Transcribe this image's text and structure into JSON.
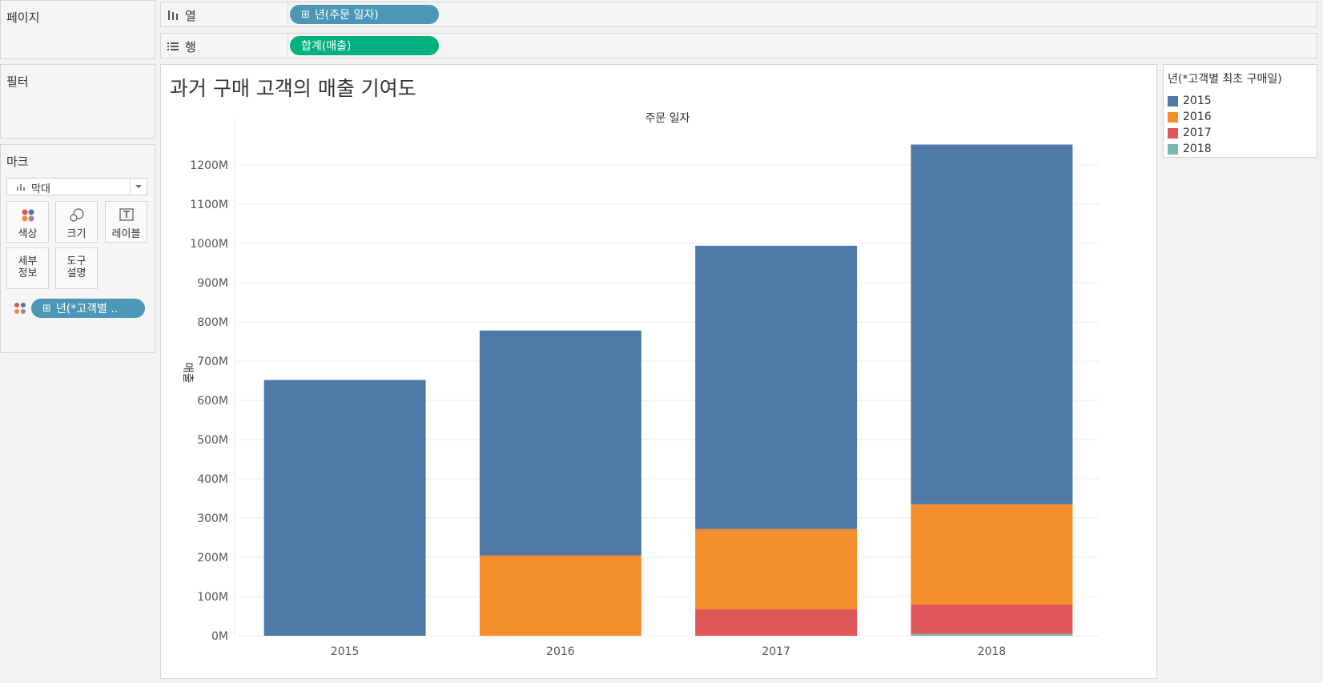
{
  "panels": {
    "pages": "페이지",
    "filters": "필터",
    "marks": "마크"
  },
  "shelves": {
    "columns": {
      "label": "열",
      "pill": "년(주문 일자)"
    },
    "rows": {
      "label": "행",
      "pill": "합계(매출)"
    }
  },
  "marks": {
    "type": "막대",
    "buttons": {
      "color": "색상",
      "size": "크기",
      "label": "레이블",
      "detail_line1": "세부",
      "detail_line2": "정보",
      "tooltip_line1": "도구",
      "tooltip_line2": "설명"
    },
    "color_pill": "년(*고객별 .."
  },
  "legend": {
    "title": "년(*고객별 최초 구매일)",
    "items": [
      {
        "label": "2015",
        "color": "#4e79a7"
      },
      {
        "label": "2016",
        "color": "#f28e2b"
      },
      {
        "label": "2017",
        "color": "#e15759"
      },
      {
        "label": "2018",
        "color": "#76b7b2"
      }
    ]
  },
  "chart_data": {
    "type": "bar",
    "stacked": true,
    "title": "과거 구매 고객의 매출 기여도",
    "xlabel": "주문 일자",
    "ylabel": "매출",
    "categories": [
      "2015",
      "2016",
      "2017",
      "2018"
    ],
    "series": [
      {
        "name": "2015",
        "color": "#4e79a7",
        "values": [
          652,
          573,
          722,
          917
        ]
      },
      {
        "name": "2016",
        "color": "#f28e2b",
        "values": [
          0,
          205,
          204,
          255
        ]
      },
      {
        "name": "2017",
        "color": "#e15759",
        "values": [
          0,
          0,
          68,
          75
        ]
      },
      {
        "name": "2018",
        "color": "#76b7b2",
        "values": [
          0,
          0,
          0,
          5
        ]
      }
    ],
    "ylim": [
      0,
      1300
    ],
    "yticks": [
      {
        "value": 0,
        "label": "0M"
      },
      {
        "value": 100,
        "label": "100M"
      },
      {
        "value": 200,
        "label": "200M"
      },
      {
        "value": 300,
        "label": "300M"
      },
      {
        "value": 400,
        "label": "400M"
      },
      {
        "value": 500,
        "label": "500M"
      },
      {
        "value": 600,
        "label": "600M"
      },
      {
        "value": 700,
        "label": "700M"
      },
      {
        "value": 800,
        "label": "800M"
      },
      {
        "value": 900,
        "label": "900M"
      },
      {
        "value": 1000,
        "label": "1000M"
      },
      {
        "value": 1100,
        "label": "1100M"
      },
      {
        "value": 1200,
        "label": "1200M"
      }
    ],
    "grid": true,
    "legend_position": "right"
  }
}
